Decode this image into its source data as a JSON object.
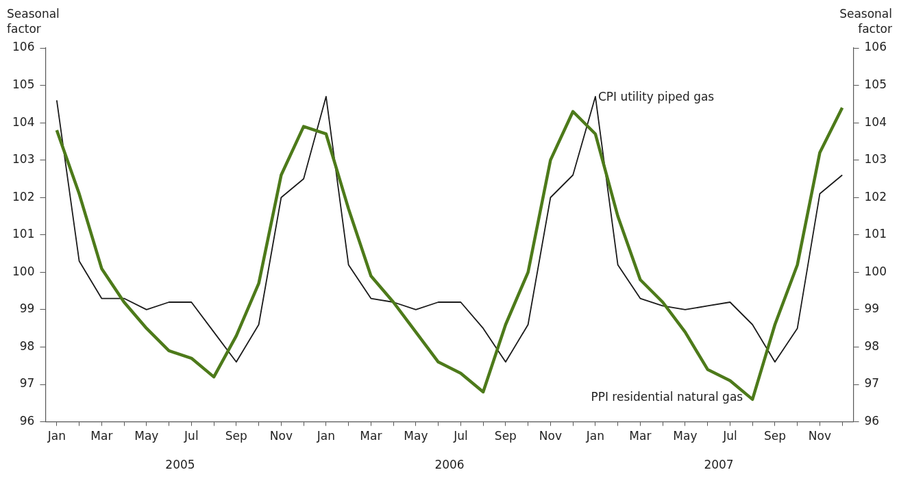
{
  "chart_data": {
    "type": "line",
    "ylabel": "Seasonal factor",
    "y2label": "Seasonal factor",
    "categories": [
      "Jan",
      null,
      "Mar",
      null,
      "May",
      null,
      "Jul",
      null,
      "Sep",
      null,
      "Nov",
      null,
      "Jan",
      null,
      "Mar",
      null,
      "May",
      null,
      "Jul",
      null,
      "Sep",
      null,
      "Nov",
      null,
      "Jan",
      null,
      "Mar",
      null,
      "May",
      null,
      "Jul",
      null,
      "Sep",
      null,
      "Nov",
      null
    ],
    "annotations": [
      "2005",
      "2006",
      "2007"
    ],
    "series": [
      {
        "name": "CPI utility piped gas",
        "color": "#1a1a1a",
        "values": [
          104.6,
          100.3,
          99.3,
          99.3,
          99.0,
          99.2,
          99.2,
          98.4,
          97.6,
          98.6,
          102.0,
          102.5,
          104.7,
          100.2,
          99.3,
          99.2,
          99.0,
          99.2,
          99.2,
          98.5,
          97.6,
          98.6,
          102.0,
          102.6,
          104.7,
          100.2,
          99.3,
          99.1,
          99.0,
          99.1,
          99.2,
          98.6,
          97.6,
          98.5,
          102.1,
          102.6
        ]
      },
      {
        "name": "PPI residential natural gas",
        "color": "#4d7a1a",
        "values": [
          103.8,
          102.1,
          100.1,
          99.2,
          98.5,
          97.9,
          97.7,
          97.2,
          98.3,
          99.7,
          102.6,
          103.9,
          103.7,
          101.7,
          99.9,
          99.2,
          98.4,
          97.6,
          97.3,
          96.8,
          98.6,
          100.0,
          103.0,
          104.3,
          103.7,
          101.5,
          99.8,
          99.2,
          98.4,
          97.4,
          97.1,
          96.6,
          98.6,
          100.2,
          103.2,
          104.4
        ]
      }
    ],
    "ylim": [
      96,
      106
    ],
    "yticks": [
      96,
      97,
      98,
      99,
      100,
      101,
      102,
      103,
      104,
      105,
      106
    ],
    "y2lim": [
      96,
      106
    ],
    "y2ticks": [
      96,
      97,
      98,
      99,
      100,
      101,
      102,
      103,
      104,
      105,
      106
    ],
    "grid": false,
    "legend": false,
    "marker": "none",
    "line_style": "solid"
  }
}
